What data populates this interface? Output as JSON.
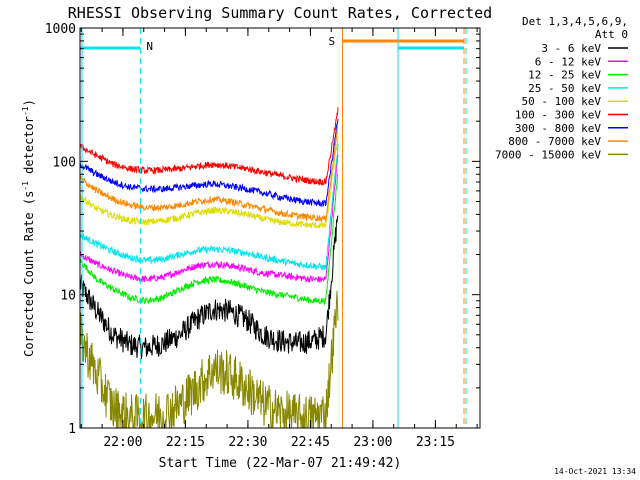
{
  "chart_data": {
    "type": "line",
    "title": "RHESSI Observing Summary Count Rates, Corrected",
    "xlabel": "Start Time (22-Mar-07 21:49:42)",
    "ylabel_main": "Corrected Count Rate (s",
    "ylabel_sup1": "-1",
    "ylabel_mid": " detector",
    "ylabel_sup2": "-1",
    "ylabel_end": ")",
    "y_scale": "log",
    "ylim": [
      1,
      1000
    ],
    "xlim_minutes": [
      0,
      75
    ],
    "x_ticks": [
      {
        "label": "22:00",
        "minutes": 10.3
      },
      {
        "label": "22:15",
        "minutes": 25.3
      },
      {
        "label": "22:30",
        "minutes": 40.3
      },
      {
        "label": "22:45",
        "minutes": 55.3
      },
      {
        "label": "23:00",
        "minutes": 70.3
      },
      {
        "label": "23:15",
        "minutes": 85.3
      }
    ],
    "y_ticks": [
      {
        "label": "1",
        "value": 1
      },
      {
        "label": "10",
        "value": 10
      },
      {
        "label": "100",
        "value": 100
      },
      {
        "label": "1000",
        "value": 1000
      }
    ],
    "legend_header": [
      "Det 1,3,4,5,6,9,",
      "Att 0"
    ],
    "legend_position": "top-right",
    "timestamp": "14-Oct-2021 13:34",
    "markers": [
      {
        "label": "N",
        "color": "#00e5ee",
        "minutes": 14.5
      },
      {
        "label": "S",
        "color": "#ff8800",
        "minutes": 63.0
      }
    ],
    "series": [
      {
        "name": "3 - 6 keV",
        "color": "#000000",
        "values": [
          12,
          7.5,
          5,
          4.2,
          4,
          4.3,
          5,
          6.5,
          7.8,
          7.5,
          6.5,
          5,
          4.5,
          4.3,
          4.5,
          5,
          45
        ]
      },
      {
        "name": "6 - 12 keV",
        "color": "#ff00ff",
        "values": [
          20,
          17,
          15,
          13.5,
          13,
          13.5,
          15,
          16.5,
          17,
          16.5,
          15.5,
          14.5,
          14,
          13.5,
          13,
          13,
          120
        ]
      },
      {
        "name": "12 - 25 keV",
        "color": "#00ee00",
        "values": [
          18,
          13,
          11,
          9.5,
          9,
          9.5,
          11,
          12.5,
          13,
          12.5,
          11.5,
          10.5,
          10,
          9.5,
          9,
          9,
          90
        ]
      },
      {
        "name": "25 - 50 keV",
        "color": "#00e5ee",
        "values": [
          28,
          24,
          21,
          19,
          18,
          18.5,
          20,
          21.5,
          22,
          21.5,
          20.5,
          19,
          18,
          17,
          16.5,
          16,
          140
        ]
      },
      {
        "name": "50 - 100 keV",
        "color": "#dddd00",
        "values": [
          55,
          44,
          39,
          36,
          35,
          36,
          38,
          41,
          43,
          42,
          40,
          37,
          35,
          34,
          33,
          33,
          160
        ]
      },
      {
        "name": "100 - 300 keV",
        "color": "#ff0000",
        "values": [
          130,
          110,
          95,
          88,
          85,
          86,
          88,
          92,
          95,
          92,
          88,
          83,
          78,
          74,
          71,
          70,
          250
        ]
      },
      {
        "name": "300 - 800 keV",
        "color": "#0000ff",
        "values": [
          95,
          80,
          70,
          64,
          62,
          62,
          64,
          66,
          68,
          65,
          62,
          58,
          54,
          51,
          49,
          48,
          220
        ]
      },
      {
        "name": "800 - 7000 keV",
        "color": "#ff8800",
        "values": [
          75,
          60,
          52,
          47,
          45,
          45,
          47,
          50,
          52,
          50,
          47,
          44,
          41,
          39,
          38,
          37,
          200
        ]
      },
      {
        "name": "7000 - 15000 keV",
        "color": "#888800",
        "values": [
          5,
          2.5,
          1.4,
          1.2,
          1.2,
          1.3,
          1.5,
          2,
          2.8,
          2.5,
          2,
          1.5,
          1.3,
          1.2,
          1.2,
          1.3,
          10
        ]
      }
    ],
    "x_minutes": [
      0,
      4,
      8,
      12,
      16,
      20,
      24,
      28,
      32,
      36,
      40,
      44,
      48,
      52,
      56,
      59,
      62
    ]
  }
}
